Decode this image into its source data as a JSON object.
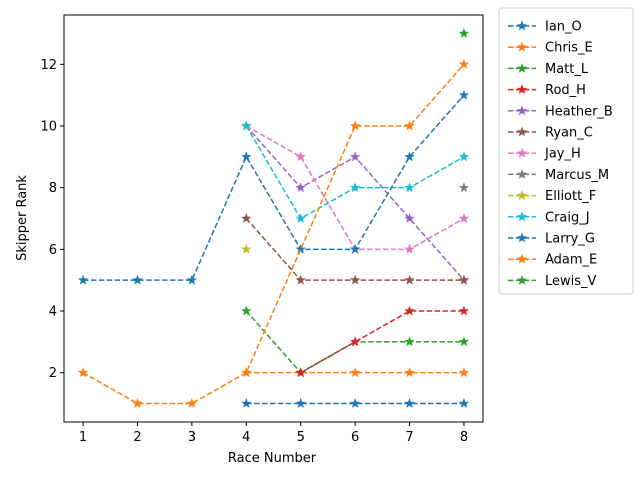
{
  "chart_data": {
    "type": "line",
    "xlabel": "Race Number",
    "ylabel": "Skipper Rank",
    "xlim": [
      0.65,
      8.35
    ],
    "ylim": [
      0.4,
      13.6
    ],
    "xticks": [
      1,
      2,
      3,
      4,
      5,
      6,
      7,
      8
    ],
    "yticks": [
      2,
      4,
      6,
      8,
      10,
      12
    ],
    "grid": false,
    "legend_position": "outside-right",
    "line_style": "dashed",
    "marker": "star",
    "series": [
      {
        "name": "Ian_O",
        "color": "#1f77b4",
        "points": [
          [
            4,
            1
          ],
          [
            5,
            1
          ],
          [
            6,
            1
          ],
          [
            7,
            1
          ],
          [
            8,
            1
          ]
        ]
      },
      {
        "name": "Chris_E",
        "color": "#ff7f0e",
        "points": [
          [
            4,
            2
          ],
          [
            5,
            2
          ],
          [
            6,
            2
          ],
          [
            7,
            2
          ],
          [
            8,
            2
          ]
        ]
      },
      {
        "name": "Matt_L",
        "color": "#2ca02c",
        "points": [
          [
            4,
            4
          ],
          [
            5,
            2
          ],
          [
            6,
            3
          ],
          [
            7,
            3
          ],
          [
            8,
            3
          ]
        ]
      },
      {
        "name": "Rod_H",
        "color": "#d62728",
        "points": [
          [
            5,
            2
          ],
          [
            6,
            3
          ],
          [
            7,
            4
          ],
          [
            8,
            4
          ]
        ]
      },
      {
        "name": "Heather_B",
        "color": "#9467bd",
        "points": [
          [
            4,
            10
          ],
          [
            5,
            8
          ],
          [
            6,
            9
          ],
          [
            7,
            7
          ],
          [
            8,
            5
          ]
        ]
      },
      {
        "name": "Ryan_C",
        "color": "#8c564b",
        "points": [
          [
            4,
            7
          ],
          [
            5,
            5
          ],
          [
            6,
            5
          ],
          [
            7,
            5
          ],
          [
            8,
            5
          ]
        ]
      },
      {
        "name": "Jay_H",
        "color": "#e377c2",
        "points": [
          [
            4,
            10
          ],
          [
            5,
            9
          ],
          [
            6,
            6
          ],
          [
            7,
            6
          ],
          [
            8,
            7
          ]
        ]
      },
      {
        "name": "Marcus_M",
        "color": "#7f7f7f",
        "points": [
          [
            8,
            8
          ]
        ]
      },
      {
        "name": "Elliott_F",
        "color": "#bcbd22",
        "points": [
          [
            4,
            6
          ]
        ]
      },
      {
        "name": "Craig_J",
        "color": "#17becf",
        "points": [
          [
            4,
            10
          ],
          [
            5,
            7
          ],
          [
            6,
            8
          ],
          [
            7,
            8
          ],
          [
            8,
            9
          ]
        ]
      },
      {
        "name": "Larry_G",
        "color": "#1f77b4",
        "points": [
          [
            1,
            5
          ],
          [
            2,
            5
          ],
          [
            3,
            5
          ],
          [
            4,
            9
          ],
          [
            5,
            6
          ],
          [
            6,
            6
          ],
          [
            7,
            9
          ],
          [
            8,
            11
          ]
        ]
      },
      {
        "name": "Adam_E",
        "color": "#ff7f0e",
        "points": [
          [
            1,
            2
          ],
          [
            2,
            1
          ],
          [
            3,
            1
          ],
          [
            4,
            2
          ],
          [
            6,
            10
          ],
          [
            7,
            10
          ],
          [
            8,
            12
          ]
        ]
      },
      {
        "name": "Lewis_V",
        "color": "#2ca02c",
        "points": [
          [
            8,
            13
          ]
        ]
      }
    ]
  }
}
